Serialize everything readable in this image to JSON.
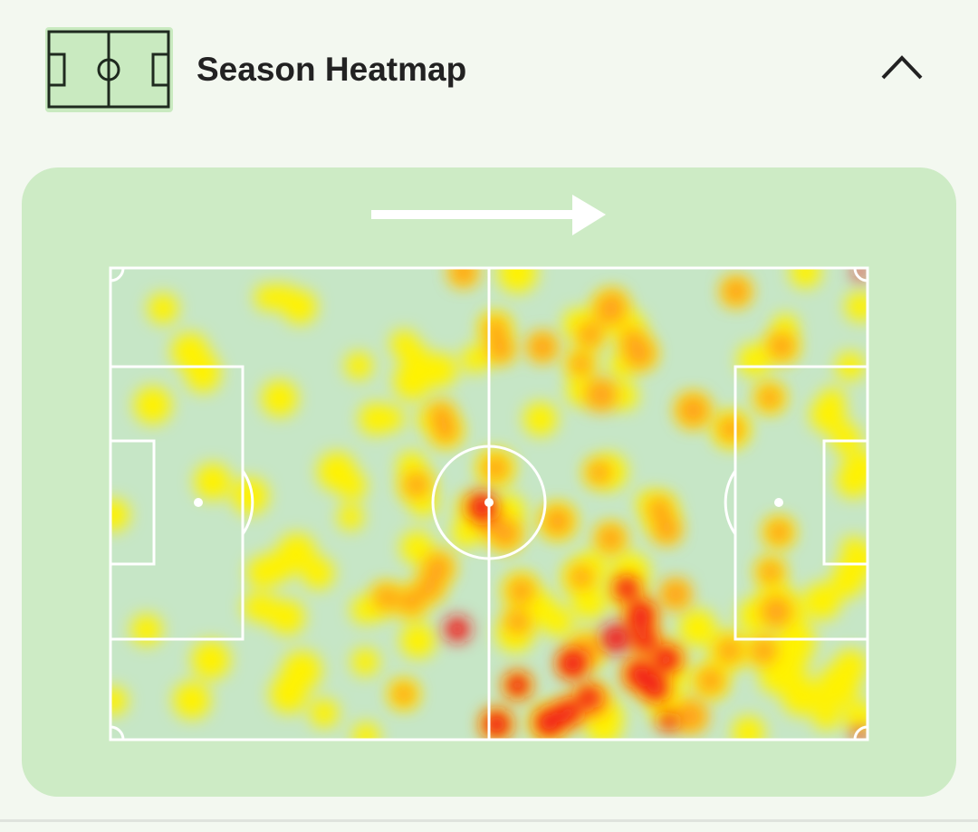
{
  "header": {
    "title": "Season Heatmap"
  }
}
